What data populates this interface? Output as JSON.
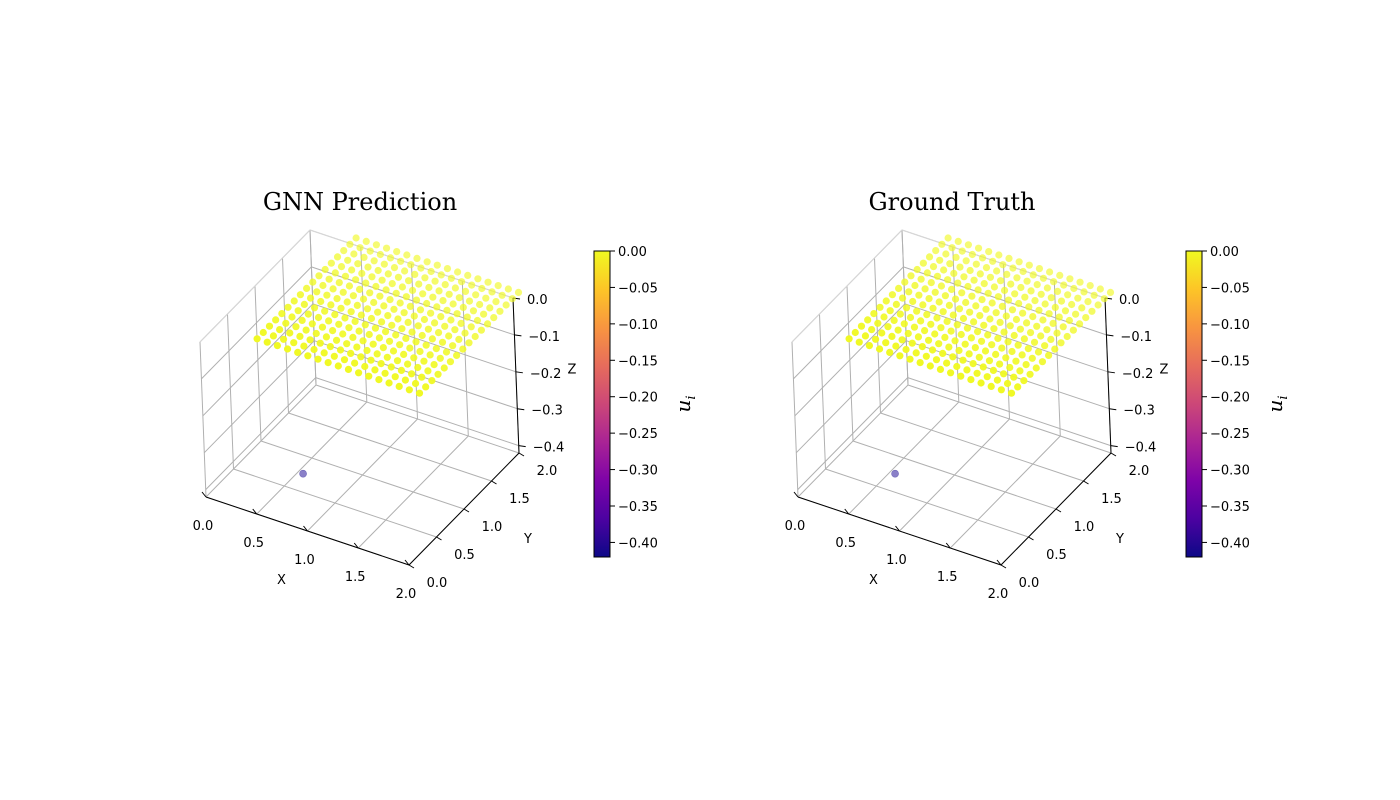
{
  "chart_data": [
    {
      "type": "scatter",
      "subtype": "3d-scatter",
      "title": "GNN Prediction",
      "xlabel": "X",
      "ylabel": "Y",
      "zlabel": "Z",
      "xlim": [
        0.0,
        2.0
      ],
      "ylim": [
        0.0,
        2.0
      ],
      "zlim": [
        -0.42,
        0.0
      ],
      "xticks": [
        "0.0",
        "0.5",
        "1.0",
        "1.5",
        "2.0"
      ],
      "yticks": [
        "0.0",
        "0.5",
        "1.0",
        "1.5",
        "2.0"
      ],
      "zticks": [
        "0.0",
        "−0.1",
        "−0.2",
        "−0.3",
        "−0.4"
      ],
      "grid": true,
      "surface": {
        "x_range": [
          0.4,
          2.0
        ],
        "y_range": [
          0.3,
          2.1
        ],
        "nx": 17,
        "ny": 17,
        "z": 0.0
      },
      "outlier_points": [
        {
          "x": 0.55,
          "y": 0.75,
          "z": -0.42
        }
      ],
      "colorbar": {
        "label_main": "u",
        "label_sub": "i",
        "cmap": "plasma",
        "range": [
          -0.42,
          0.0
        ],
        "ticks": [
          "0.00",
          "−0.05",
          "−0.10",
          "−0.15",
          "−0.20",
          "−0.25",
          "−0.30",
          "−0.35",
          "−0.40"
        ]
      },
      "colors": {
        "surface_points": "#f0f921",
        "outlier_point": "#8a80c8"
      }
    },
    {
      "type": "scatter",
      "subtype": "3d-scatter",
      "title": "Ground Truth",
      "xlabel": "X",
      "ylabel": "Y",
      "zlabel": "Z",
      "xlim": [
        0.0,
        2.0
      ],
      "ylim": [
        0.0,
        2.0
      ],
      "zlim": [
        -0.42,
        0.0
      ],
      "xticks": [
        "0.0",
        "0.5",
        "1.0",
        "1.5",
        "2.0"
      ],
      "yticks": [
        "0.0",
        "0.5",
        "1.0",
        "1.5",
        "2.0"
      ],
      "zticks": [
        "0.0",
        "−0.1",
        "−0.2",
        "−0.3",
        "−0.4"
      ],
      "grid": true,
      "surface": {
        "x_range": [
          0.4,
          2.0
        ],
        "y_range": [
          0.3,
          2.1
        ],
        "nx": 17,
        "ny": 17,
        "z": 0.0
      },
      "outlier_points": [
        {
          "x": 0.55,
          "y": 0.75,
          "z": -0.42
        }
      ],
      "colorbar": {
        "label_main": "u",
        "label_sub": "i",
        "cmap": "plasma",
        "range": [
          -0.42,
          0.0
        ],
        "ticks": [
          "0.00",
          "−0.05",
          "−0.10",
          "−0.15",
          "−0.20",
          "−0.25",
          "−0.30",
          "−0.35",
          "−0.40"
        ]
      },
      "colors": {
        "surface_points": "#f0f921",
        "outlier_point": "#8a80c8"
      }
    }
  ]
}
